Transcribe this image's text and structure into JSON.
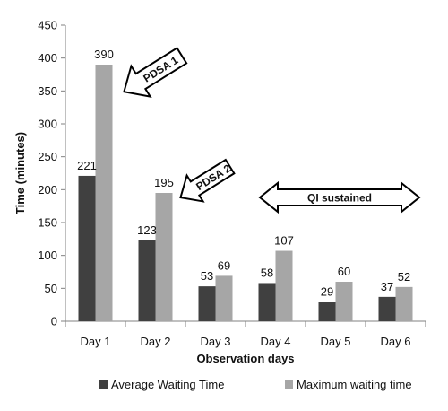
{
  "chart_data": {
    "type": "bar",
    "categories": [
      "Day 1",
      "Day 2",
      "Day 3",
      "Day 4",
      "Day 5",
      "Day 6"
    ],
    "series": [
      {
        "name": "Average Waiting Time",
        "values": [
          221,
          123,
          53,
          58,
          29,
          37
        ],
        "color": "#404040"
      },
      {
        "name": "Maximum waiting time",
        "values": [
          390,
          195,
          69,
          107,
          60,
          52
        ],
        "color": "#a6a6a6"
      }
    ],
    "xlabel": "Observation days",
    "ylabel": "Time (minutes)",
    "ylim": [
      0,
      450
    ],
    "yticks": [
      "0",
      "50",
      "100",
      "150",
      "200",
      "250",
      "300",
      "350",
      "400",
      "450"
    ],
    "grid": false,
    "legend_position": "bottom",
    "annotations": [
      {
        "text": "PDSA 1",
        "shape": "arrow",
        "points_to": "Day 1 maximum waiting time"
      },
      {
        "text": "PDSA 2",
        "shape": "arrow",
        "points_to": "Day 2 maximum waiting time"
      },
      {
        "text": "QI sustained",
        "shape": "double-arrow",
        "spans": [
          "Day 4",
          "Day 6"
        ]
      }
    ]
  }
}
